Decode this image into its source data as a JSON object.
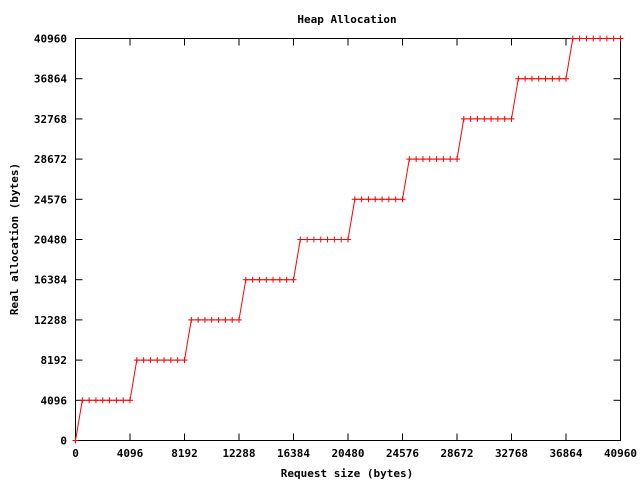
{
  "chart_data": {
    "type": "line",
    "title": "Heap Allocation",
    "xlabel": "Request size (bytes)",
    "ylabel": "Real allocation (bytes)",
    "xlim": [
      0,
      40960
    ],
    "ylim": [
      0,
      40960
    ],
    "xticks": [
      "0",
      "4096",
      "8192",
      "12288",
      "16384",
      "20480",
      "24576",
      "28672",
      "32768",
      "36864",
      "40960"
    ],
    "yticks": [
      "0",
      "4096",
      "8192",
      "12288",
      "16384",
      "20480",
      "24576",
      "28672",
      "32768",
      "36864",
      "40960"
    ],
    "grid": false,
    "legend": "none",
    "series": [
      {
        "color": "#ff0000",
        "marker": "+",
        "x": [
          0,
          512,
          1024,
          1536,
          2048,
          2560,
          3072,
          3584,
          4096,
          4608,
          5120,
          5632,
          6144,
          6656,
          7168,
          7680,
          8192,
          8704,
          9216,
          9728,
          10240,
          10752,
          11264,
          11776,
          12288,
          12800,
          13312,
          13824,
          14336,
          14848,
          15360,
          15872,
          16384,
          16896,
          17408,
          17920,
          18432,
          18944,
          19456,
          19968,
          20480,
          20992,
          21504,
          22016,
          22528,
          23040,
          23552,
          24064,
          24576,
          25088,
          25600,
          26112,
          26624,
          27136,
          27648,
          28160,
          28672,
          29184,
          29696,
          30208,
          30720,
          31232,
          31744,
          32256,
          32768,
          33280,
          33792,
          34304,
          34816,
          35328,
          35840,
          36352,
          36864,
          37376,
          37888,
          38400,
          38912,
          39424,
          39936,
          40448,
          40960
        ],
        "y": [
          0,
          4096,
          4096,
          4096,
          4096,
          4096,
          4096,
          4096,
          4096,
          8192,
          8192,
          8192,
          8192,
          8192,
          8192,
          8192,
          8192,
          12288,
          12288,
          12288,
          12288,
          12288,
          12288,
          12288,
          12288,
          16384,
          16384,
          16384,
          16384,
          16384,
          16384,
          16384,
          16384,
          20480,
          20480,
          20480,
          20480,
          20480,
          20480,
          20480,
          20480,
          24576,
          24576,
          24576,
          24576,
          24576,
          24576,
          24576,
          24576,
          28672,
          28672,
          28672,
          28672,
          28672,
          28672,
          28672,
          28672,
          32768,
          32768,
          32768,
          32768,
          32768,
          32768,
          32768,
          32768,
          36864,
          36864,
          36864,
          36864,
          36864,
          36864,
          36864,
          36864,
          40960,
          40960,
          40960,
          40960,
          40960,
          40960,
          40960,
          40960
        ]
      }
    ]
  }
}
